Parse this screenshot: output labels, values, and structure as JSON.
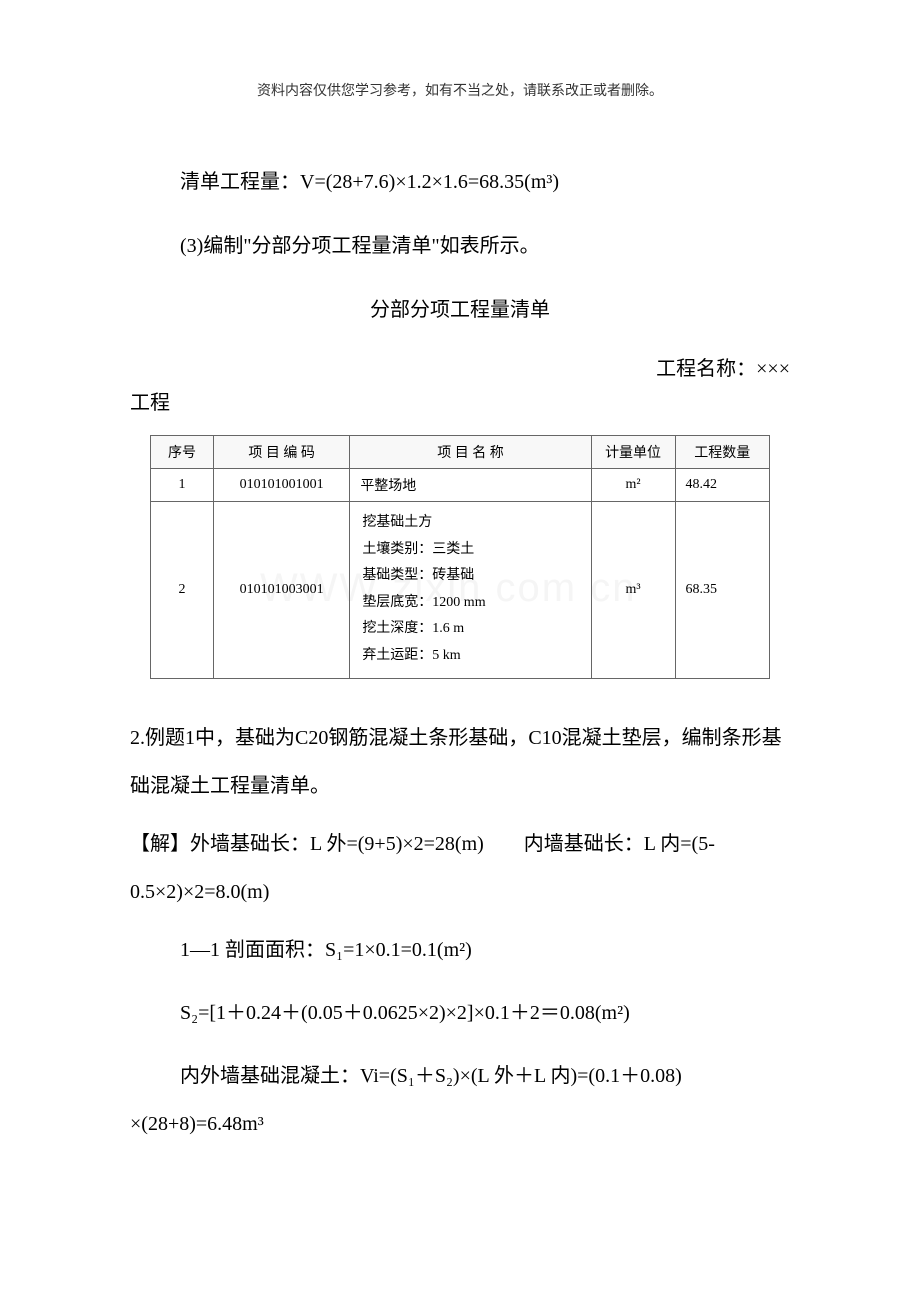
{
  "header_note": "资料内容仅供您学习参考，如有不当之处，请联系改正或者删除。",
  "line1": "清单工程量：V=(28+7.6)×1.2×1.6=68.35(m³)",
  "line2": "(3)编制\"分部分项工程量清单\"如表所示。",
  "section_title": "分部分项工程量清单",
  "project_label_right": "工程名称：×××",
  "project_label_left": "工程",
  "watermark_text": "WWW  zixin  com  cn",
  "table": {
    "columns": [
      "序号",
      "项 目 编 码",
      "项 目 名 称",
      "计量单位",
      "工程数量"
    ],
    "rows": [
      {
        "seq": "1",
        "code": "010101001001",
        "name": "平整场地",
        "unit": "m²",
        "qty": "48.42"
      },
      {
        "seq": "2",
        "code": "010101003001",
        "name_lines": [
          "挖基础土方",
          "土壤类别：三类土",
          "基础类型：砖基础",
          "垫层底宽：1200 mm",
          "挖土深度：1.6 m",
          "弃土运距：5 km"
        ],
        "unit": "m³",
        "qty": "68.35"
      }
    ],
    "border_color": "#666666",
    "fontsize": 14
  },
  "para2": "2.例题1中，基础为C20钢筋混凝土条形基础，C10混凝土垫层，编制条形基础混凝土工程量清单。",
  "solution_label": "【解】",
  "solution_line1": "外墙基础长：L 外=(9+5)×2=28(m)　　内墙基础长：L 内=(5-0.5×2)×2=8.0(m)",
  "section_1_1": "1—1 剖面面积：S₁=1×0.1=0.1(m²)",
  "s2_formula": "S₂=[1＋0.24＋(0.05＋0.0625×2)×2]×0.1＋2＝0.08(m²)",
  "vi_line1": "内外墙基础混凝土：Vi=(S₁＋S₂)×(L 外＋L 内)=(0.1＋0.08)",
  "vi_line2": "×(28+8)=6.48m³",
  "colors": {
    "text": "#000000",
    "background": "#ffffff",
    "watermark": "#dddddd",
    "header_note": "#333333"
  },
  "fontsize_body": 20,
  "fontsize_header": 14
}
